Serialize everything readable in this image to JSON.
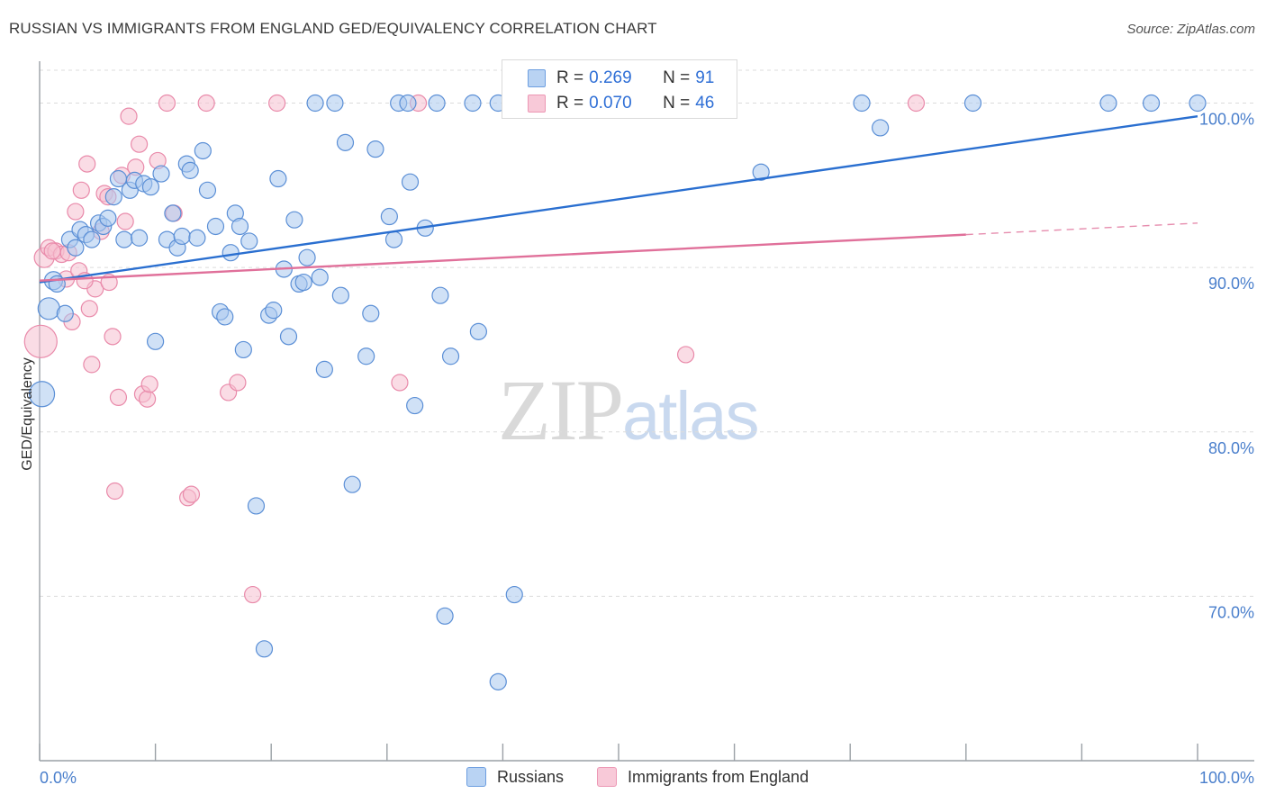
{
  "header": {
    "title": "RUSSIAN VS IMMIGRANTS FROM ENGLAND GED/EQUIVALENCY CORRELATION CHART",
    "source": "Source: ZipAtlas.com"
  },
  "legend": {
    "series1": {
      "r_label": "R = ",
      "r_value": "0.269",
      "n_label": "N = ",
      "n_value": "91"
    },
    "series2": {
      "r_label": "R = ",
      "r_value": "0.070",
      "n_label": "N = ",
      "n_value": "46"
    }
  },
  "bottom_legend": {
    "series1": "Russians",
    "series2": "Immigrants from England"
  },
  "watermark": {
    "zip": "ZIP",
    "atlas": "atlas"
  },
  "colors": {
    "blue_fill": "#aac8ef",
    "blue_stroke": "#5b8fd6",
    "blue_line": "#2a6fd0",
    "pink_fill": "#f6bfd0",
    "pink_stroke": "#e98aaa",
    "pink_line": "#e0709a"
  },
  "chart_data": {
    "type": "scatter",
    "title": "RUSSIAN VS IMMIGRANTS FROM ENGLAND GED/EQUIVALENCY CORRELATION CHART",
    "xlabel": "",
    "ylabel": "GED/Equivalency",
    "xlim": [
      0,
      100
    ],
    "ylim": [
      60,
      102
    ],
    "x_tick_labels": [
      "0.0%",
      "100.0%"
    ],
    "y_ticks": [
      70,
      80,
      90,
      100
    ],
    "y_tick_labels": [
      "70.0%",
      "80.0%",
      "90.0%",
      "100.0%"
    ],
    "grid": true,
    "legend_position": "top-center",
    "series": [
      {
        "name": "Russians",
        "r": 0.269,
        "n": 91,
        "trend": {
          "x": [
            0,
            100
          ],
          "y": [
            89.1,
            99.2
          ]
        },
        "points": [
          {
            "x": 0.2,
            "y": 82.3,
            "s": 14
          },
          {
            "x": 0.8,
            "y": 87.5,
            "s": 12
          },
          {
            "x": 1.2,
            "y": 89.2,
            "s": 10
          },
          {
            "x": 1.5,
            "y": 89.0,
            "s": 9
          },
          {
            "x": 2.2,
            "y": 87.2,
            "s": 9
          },
          {
            "x": 2.6,
            "y": 91.7,
            "s": 9
          },
          {
            "x": 3.1,
            "y": 91.2,
            "s": 9
          },
          {
            "x": 3.5,
            "y": 92.3,
            "s": 9
          },
          {
            "x": 4.0,
            "y": 92.0,
            "s": 9
          },
          {
            "x": 4.5,
            "y": 91.7,
            "s": 9
          },
          {
            "x": 5.1,
            "y": 92.7,
            "s": 9
          },
          {
            "x": 5.5,
            "y": 92.5,
            "s": 9
          },
          {
            "x": 5.9,
            "y": 93.0,
            "s": 9
          },
          {
            "x": 6.4,
            "y": 94.3,
            "s": 9
          },
          {
            "x": 6.8,
            "y": 95.4,
            "s": 9
          },
          {
            "x": 7.3,
            "y": 91.7,
            "s": 9
          },
          {
            "x": 7.8,
            "y": 94.7,
            "s": 9
          },
          {
            "x": 8.2,
            "y": 95.3,
            "s": 9
          },
          {
            "x": 8.6,
            "y": 91.8,
            "s": 9
          },
          {
            "x": 9.0,
            "y": 95.1,
            "s": 9
          },
          {
            "x": 9.6,
            "y": 94.9,
            "s": 9
          },
          {
            "x": 10.0,
            "y": 85.5,
            "s": 9
          },
          {
            "x": 10.5,
            "y": 95.7,
            "s": 9
          },
          {
            "x": 11.0,
            "y": 91.7,
            "s": 9
          },
          {
            "x": 11.5,
            "y": 93.3,
            "s": 9
          },
          {
            "x": 11.9,
            "y": 91.2,
            "s": 9
          },
          {
            "x": 12.3,
            "y": 91.9,
            "s": 9
          },
          {
            "x": 12.7,
            "y": 96.3,
            "s": 9
          },
          {
            "x": 13.0,
            "y": 95.9,
            "s": 9
          },
          {
            "x": 13.6,
            "y": 91.8,
            "s": 9
          },
          {
            "x": 14.1,
            "y": 97.1,
            "s": 9
          },
          {
            "x": 14.5,
            "y": 94.7,
            "s": 9
          },
          {
            "x": 15.2,
            "y": 92.5,
            "s": 9
          },
          {
            "x": 15.6,
            "y": 87.3,
            "s": 9
          },
          {
            "x": 16.0,
            "y": 87.0,
            "s": 9
          },
          {
            "x": 16.5,
            "y": 90.9,
            "s": 9
          },
          {
            "x": 16.9,
            "y": 93.3,
            "s": 9
          },
          {
            "x": 17.3,
            "y": 92.5,
            "s": 9
          },
          {
            "x": 17.6,
            "y": 85.0,
            "s": 9
          },
          {
            "x": 18.1,
            "y": 91.6,
            "s": 9
          },
          {
            "x": 18.7,
            "y": 75.5,
            "s": 9
          },
          {
            "x": 19.4,
            "y": 66.8,
            "s": 9
          },
          {
            "x": 19.8,
            "y": 87.1,
            "s": 9
          },
          {
            "x": 20.2,
            "y": 87.4,
            "s": 9
          },
          {
            "x": 20.6,
            "y": 95.4,
            "s": 9
          },
          {
            "x": 21.1,
            "y": 89.9,
            "s": 9
          },
          {
            "x": 21.5,
            "y": 85.8,
            "s": 9
          },
          {
            "x": 22.0,
            "y": 92.9,
            "s": 9
          },
          {
            "x": 22.4,
            "y": 89.0,
            "s": 9
          },
          {
            "x": 22.8,
            "y": 89.1,
            "s": 9
          },
          {
            "x": 23.1,
            "y": 90.6,
            "s": 9
          },
          {
            "x": 24.2,
            "y": 89.4,
            "s": 9
          },
          {
            "x": 24.6,
            "y": 83.8,
            "s": 9
          },
          {
            "x": 26.0,
            "y": 88.3,
            "s": 9
          },
          {
            "x": 26.4,
            "y": 97.6,
            "s": 9
          },
          {
            "x": 27.0,
            "y": 76.8,
            "s": 9
          },
          {
            "x": 28.2,
            "y": 84.6,
            "s": 9
          },
          {
            "x": 28.6,
            "y": 87.2,
            "s": 9
          },
          {
            "x": 29.0,
            "y": 97.2,
            "s": 9
          },
          {
            "x": 30.2,
            "y": 93.1,
            "s": 9
          },
          {
            "x": 30.6,
            "y": 91.7,
            "s": 9
          },
          {
            "x": 32.0,
            "y": 95.2,
            "s": 9
          },
          {
            "x": 32.4,
            "y": 81.6,
            "s": 9
          },
          {
            "x": 33.3,
            "y": 92.4,
            "s": 9
          },
          {
            "x": 34.6,
            "y": 88.3,
            "s": 9
          },
          {
            "x": 35.5,
            "y": 84.6,
            "s": 9
          },
          {
            "x": 35.0,
            "y": 68.8,
            "s": 9
          },
          {
            "x": 37.9,
            "y": 86.1,
            "s": 9
          },
          {
            "x": 41.0,
            "y": 70.1,
            "s": 9
          },
          {
            "x": 39.6,
            "y": 64.8,
            "s": 9
          },
          {
            "x": 62.3,
            "y": 95.8,
            "s": 9
          },
          {
            "x": 71.0,
            "y": 100.0,
            "s": 9
          },
          {
            "x": 80.6,
            "y": 100.0,
            "s": 9
          },
          {
            "x": 96.0,
            "y": 100.0,
            "s": 9
          },
          {
            "x": 100.0,
            "y": 100.0,
            "s": 9
          },
          {
            "x": 23.8,
            "y": 100.0,
            "s": 9
          },
          {
            "x": 25.5,
            "y": 100.0,
            "s": 9
          },
          {
            "x": 31.0,
            "y": 100.0,
            "s": 9
          },
          {
            "x": 31.8,
            "y": 100.0,
            "s": 9
          },
          {
            "x": 34.3,
            "y": 100.0,
            "s": 9
          },
          {
            "x": 37.4,
            "y": 100.0,
            "s": 9
          },
          {
            "x": 39.6,
            "y": 100.0,
            "s": 9
          },
          {
            "x": 40.8,
            "y": 100.0,
            "s": 9
          },
          {
            "x": 47.0,
            "y": 100.0,
            "s": 9
          },
          {
            "x": 51.0,
            "y": 100.0,
            "s": 9
          },
          {
            "x": 53.0,
            "y": 100.0,
            "s": 9
          },
          {
            "x": 56.5,
            "y": 100.0,
            "s": 9
          },
          {
            "x": 58.0,
            "y": 100.0,
            "s": 9
          },
          {
            "x": 59.5,
            "y": 100.0,
            "s": 9
          },
          {
            "x": 92.3,
            "y": 100.0,
            "s": 9
          },
          {
            "x": 72.6,
            "y": 98.5,
            "s": 9
          }
        ]
      },
      {
        "name": "Immigrants from England",
        "r": 0.07,
        "n": 46,
        "trend": {
          "x": [
            0,
            80
          ],
          "y": [
            89.2,
            92.0
          ]
        },
        "trend_extension": {
          "x": [
            80,
            100
          ],
          "y": [
            92.0,
            92.7
          ]
        },
        "points": [
          {
            "x": 0.1,
            "y": 85.5,
            "s": 18
          },
          {
            "x": 0.4,
            "y": 90.6,
            "s": 11
          },
          {
            "x": 0.8,
            "y": 91.2,
            "s": 9
          },
          {
            "x": 1.4,
            "y": 91.0,
            "s": 9
          },
          {
            "x": 1.9,
            "y": 90.8,
            "s": 9
          },
          {
            "x": 2.3,
            "y": 89.3,
            "s": 9
          },
          {
            "x": 2.8,
            "y": 86.7,
            "s": 9
          },
          {
            "x": 3.1,
            "y": 93.4,
            "s": 9
          },
          {
            "x": 3.4,
            "y": 89.8,
            "s": 9
          },
          {
            "x": 3.6,
            "y": 94.7,
            "s": 9
          },
          {
            "x": 4.1,
            "y": 96.3,
            "s": 9
          },
          {
            "x": 4.3,
            "y": 87.5,
            "s": 9
          },
          {
            "x": 4.5,
            "y": 84.1,
            "s": 9
          },
          {
            "x": 4.8,
            "y": 88.7,
            "s": 9
          },
          {
            "x": 5.3,
            "y": 92.2,
            "s": 9
          },
          {
            "x": 5.6,
            "y": 94.5,
            "s": 9
          },
          {
            "x": 5.9,
            "y": 94.3,
            "s": 9
          },
          {
            "x": 6.0,
            "y": 89.1,
            "s": 9
          },
          {
            "x": 6.3,
            "y": 85.8,
            "s": 9
          },
          {
            "x": 6.5,
            "y": 76.4,
            "s": 9
          },
          {
            "x": 6.8,
            "y": 82.1,
            "s": 9
          },
          {
            "x": 7.1,
            "y": 95.6,
            "s": 9
          },
          {
            "x": 7.4,
            "y": 92.8,
            "s": 9
          },
          {
            "x": 7.7,
            "y": 99.2,
            "s": 9
          },
          {
            "x": 8.3,
            "y": 96.1,
            "s": 9
          },
          {
            "x": 8.6,
            "y": 97.5,
            "s": 9
          },
          {
            "x": 8.9,
            "y": 82.3,
            "s": 9
          },
          {
            "x": 9.3,
            "y": 82.0,
            "s": 9
          },
          {
            "x": 9.5,
            "y": 82.9,
            "s": 9
          },
          {
            "x": 10.2,
            "y": 96.5,
            "s": 9
          },
          {
            "x": 11.6,
            "y": 93.3,
            "s": 9
          },
          {
            "x": 12.8,
            "y": 76.0,
            "s": 9
          },
          {
            "x": 13.1,
            "y": 76.2,
            "s": 9
          },
          {
            "x": 16.3,
            "y": 82.4,
            "s": 9
          },
          {
            "x": 17.1,
            "y": 83.0,
            "s": 9
          },
          {
            "x": 18.4,
            "y": 70.1,
            "s": 9
          },
          {
            "x": 31.1,
            "y": 83.0,
            "s": 9
          },
          {
            "x": 55.8,
            "y": 84.7,
            "s": 9
          },
          {
            "x": 11.0,
            "y": 100.0,
            "s": 9
          },
          {
            "x": 14.4,
            "y": 100.0,
            "s": 9
          },
          {
            "x": 20.5,
            "y": 100.0,
            "s": 9
          },
          {
            "x": 32.7,
            "y": 100.0,
            "s": 9
          },
          {
            "x": 75.7,
            "y": 100.0,
            "s": 9
          },
          {
            "x": 2.5,
            "y": 90.9,
            "s": 9
          },
          {
            "x": 1.1,
            "y": 91.0,
            "s": 9
          },
          {
            "x": 3.9,
            "y": 89.2,
            "s": 9
          }
        ]
      }
    ]
  }
}
